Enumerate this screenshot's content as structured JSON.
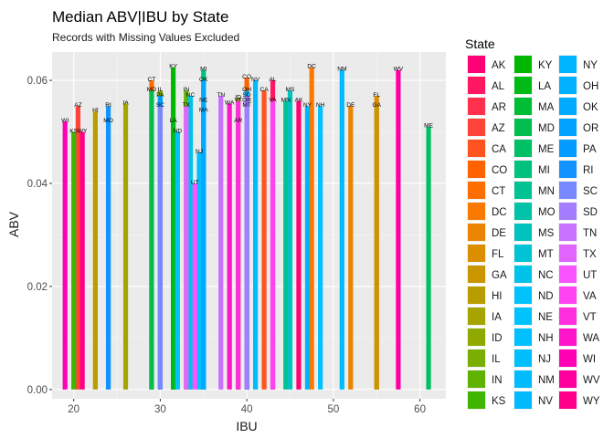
{
  "chart_data": {
    "type": "bar",
    "title": "Median ABV|IBU by State",
    "subtitle": "Records with Missing Values Excluded",
    "xlabel": "IBU",
    "ylabel": "ABV",
    "xlim": [
      17.5,
      63
    ],
    "ylim": [
      -0.0018,
      0.0655
    ],
    "xticks": [
      20,
      30,
      40,
      50,
      60
    ],
    "yticks": [
      0.0,
      0.02,
      0.04,
      0.06
    ],
    "ytick_labels": [
      "0.00",
      "0.02",
      "0.04",
      "0.06"
    ],
    "grid": true,
    "legend_title": "State",
    "legend_position": "right",
    "series": [
      {
        "name": "AK",
        "ibu": 46.0,
        "abv": 0.056
      },
      {
        "name": "AL",
        "ibu": 43.0,
        "abv": 0.06
      },
      {
        "name": "AR",
        "ibu": 39.0,
        "abv": 0.052
      },
      {
        "name": "AZ",
        "ibu": 20.5,
        "abv": 0.055
      },
      {
        "name": "CA",
        "ibu": 42.0,
        "abv": 0.058
      },
      {
        "name": "CO",
        "ibu": 40.0,
        "abv": 0.0605
      },
      {
        "name": "CT",
        "ibu": 29.0,
        "abv": 0.06
      },
      {
        "name": "DC",
        "ibu": 47.5,
        "abv": 0.0625
      },
      {
        "name": "DE",
        "ibu": 52.0,
        "abv": 0.055
      },
      {
        "name": "FL",
        "ibu": 55.0,
        "abv": 0.057
      },
      {
        "name": "GA",
        "ibu": 55.0,
        "abv": 0.055
      },
      {
        "name": "HI",
        "ibu": 22.5,
        "abv": 0.054
      },
      {
        "name": "IA",
        "ibu": 26.0,
        "abv": 0.0555
      },
      {
        "name": "ID",
        "ibu": 39.0,
        "abv": 0.0565
      },
      {
        "name": "IL",
        "ibu": 30.0,
        "abv": 0.058
      },
      {
        "name": "IN",
        "ibu": 33.0,
        "abv": 0.058
      },
      {
        "name": "KS",
        "ibu": 20.0,
        "abv": 0.05
      },
      {
        "name": "KY",
        "ibu": 31.5,
        "abv": 0.0625
      },
      {
        "name": "LA",
        "ibu": 31.5,
        "abv": 0.052
      },
      {
        "name": "MA",
        "ibu": 35.0,
        "abv": 0.054
      },
      {
        "name": "MD",
        "ibu": 29.0,
        "abv": 0.058
      },
      {
        "name": "ME",
        "ibu": 61.0,
        "abv": 0.051
      },
      {
        "name": "MI",
        "ibu": 35.0,
        "abv": 0.062
      },
      {
        "name": "MN",
        "ibu": 44.5,
        "abv": 0.056
      },
      {
        "name": "MO",
        "ibu": 24.0,
        "abv": 0.052
      },
      {
        "name": "MS",
        "ibu": 45.0,
        "abv": 0.058
      },
      {
        "name": "MT",
        "ibu": 40.0,
        "abv": 0.055
      },
      {
        "name": "NC",
        "ibu": 33.5,
        "abv": 0.057
      },
      {
        "name": "ND",
        "ibu": 32.0,
        "abv": 0.05
      },
      {
        "name": "NE",
        "ibu": 35.0,
        "abv": 0.056
      },
      {
        "name": "NH",
        "ibu": 48.5,
        "abv": 0.055
      },
      {
        "name": "NJ",
        "ibu": 34.5,
        "abv": 0.046
      },
      {
        "name": "NM",
        "ibu": 51.0,
        "abv": 0.062
      },
      {
        "name": "NV",
        "ibu": 41.0,
        "abv": 0.06
      },
      {
        "name": "NY",
        "ibu": 47.0,
        "abv": 0.055
      },
      {
        "name": "OH",
        "ibu": 40.0,
        "abv": 0.058
      },
      {
        "name": "OK",
        "ibu": 35.0,
        "abv": 0.06
      },
      {
        "name": "OR",
        "ibu": 40.0,
        "abv": 0.056
      },
      {
        "name": "PA",
        "ibu": 30.0,
        "abv": 0.057
      },
      {
        "name": "RI",
        "ibu": 24.0,
        "abv": 0.055
      },
      {
        "name": "SC",
        "ibu": 30.0,
        "abv": 0.055
      },
      {
        "name": "SD",
        "ibu": 40.0,
        "abv": 0.057
      },
      {
        "name": "TN",
        "ibu": 37.0,
        "abv": 0.057
      },
      {
        "name": "TX",
        "ibu": 33.0,
        "abv": 0.055
      },
      {
        "name": "UT",
        "ibu": 34.0,
        "abv": 0.04
      },
      {
        "name": "VA",
        "ibu": 43.0,
        "abv": 0.056
      },
      {
        "name": "VT",
        "ibu": 39.0,
        "abv": 0.056
      },
      {
        "name": "WA",
        "ibu": 38.0,
        "abv": 0.0555
      },
      {
        "name": "WI",
        "ibu": 19.0,
        "abv": 0.052
      },
      {
        "name": "WV",
        "ibu": 57.5,
        "abv": 0.062
      },
      {
        "name": "WY",
        "ibu": 21.0,
        "abv": 0.05
      }
    ]
  }
}
